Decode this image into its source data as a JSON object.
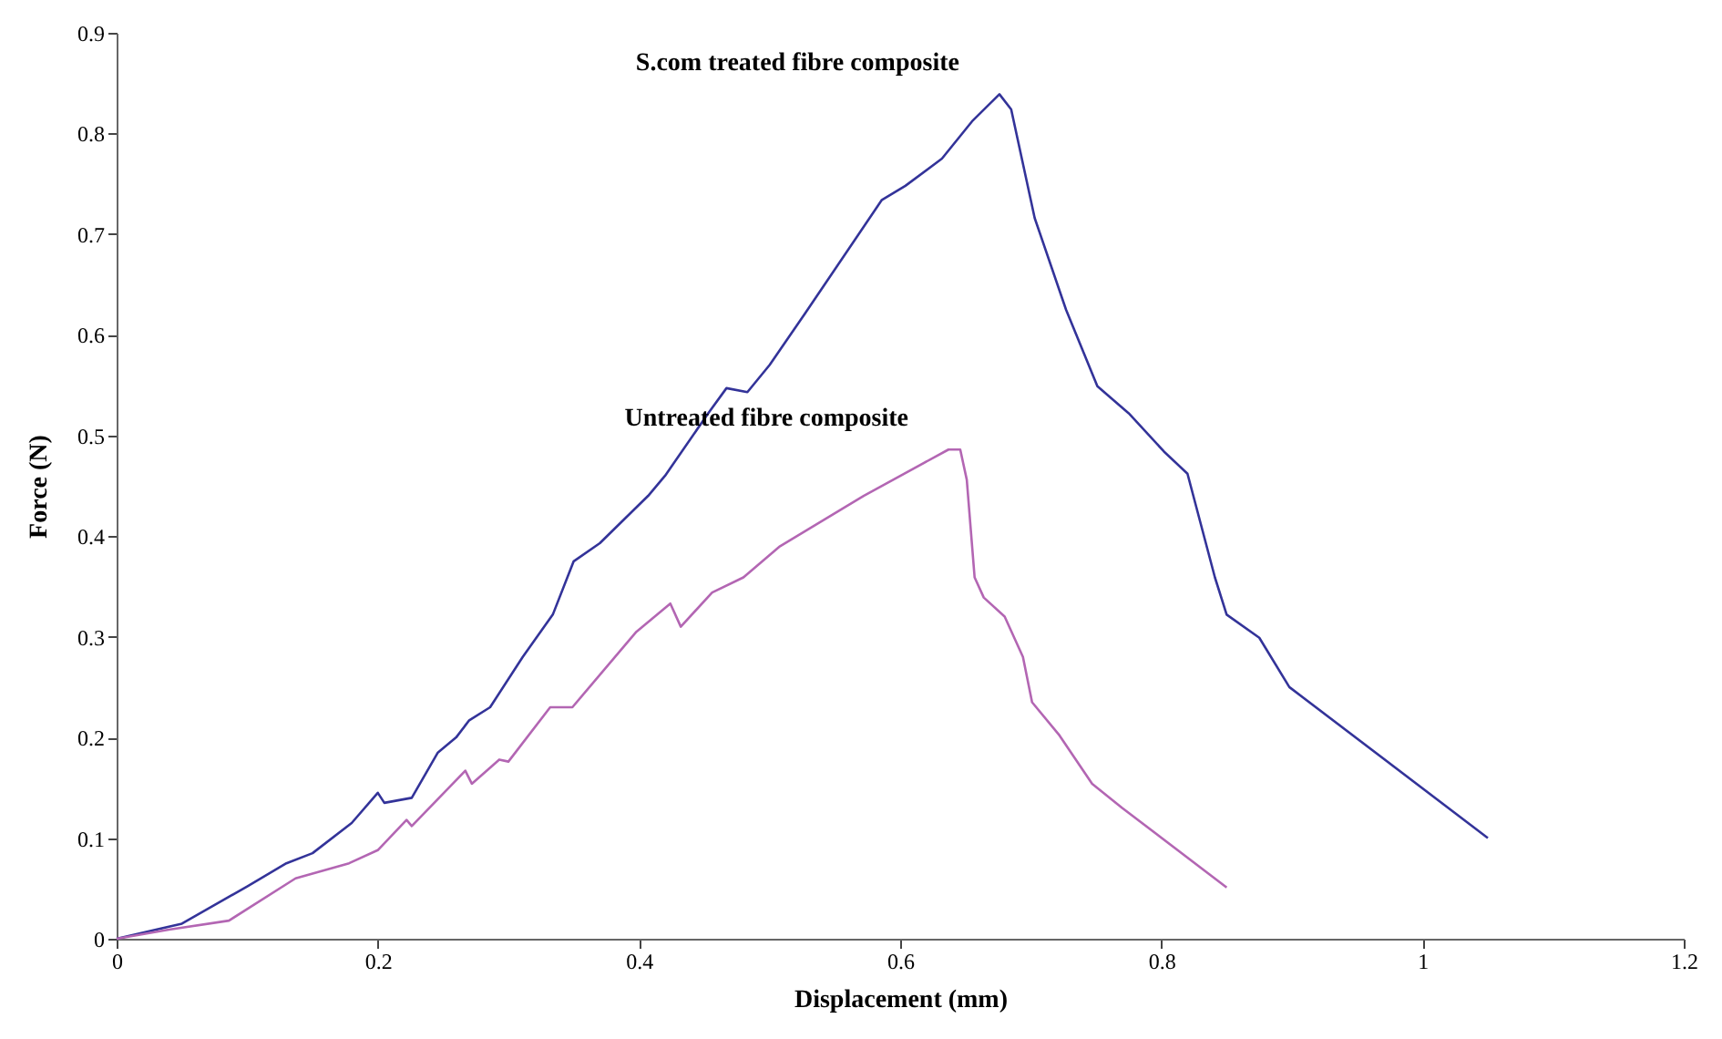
{
  "chart_data": {
    "type": "line",
    "xlabel": "Displacement (mm)",
    "ylabel": "Force (N)",
    "xlim": [
      0,
      1.2
    ],
    "xticks": [
      0,
      0.2,
      0.4,
      0.6,
      0.8,
      1,
      1.2
    ],
    "ylim": [
      0,
      0.9
    ],
    "yticks": [
      0,
      0.1,
      0.2,
      0.3,
      0.4,
      0.5,
      0.6,
      0.7,
      0.8,
      0.9
    ],
    "grid": false,
    "legend": false,
    "marker": "none",
    "line_style": "solid",
    "series": [
      {
        "name": "S.com treated fibre composite",
        "color": "#333399",
        "x": [
          0,
          0.05,
          0.1,
          0.13,
          0.15,
          0.18,
          0.2,
          0.205,
          0.226,
          0.246,
          0.26,
          0.27,
          0.286,
          0.311,
          0.334,
          0.35,
          0.37,
          0.407,
          0.42,
          0.453,
          0.467,
          0.483,
          0.5,
          0.527,
          0.586,
          0.604,
          0.632,
          0.655,
          0.676,
          0.685,
          0.703,
          0.727,
          0.751,
          0.775,
          0.802,
          0.82,
          0.841,
          0.85,
          0.875,
          0.898,
          1.05
        ],
        "values": [
          0,
          0.015,
          0.052,
          0.075,
          0.085,
          0.115,
          0.145,
          0.135,
          0.14,
          0.185,
          0.2,
          0.217,
          0.23,
          0.28,
          0.322,
          0.375,
          0.393,
          0.44,
          0.46,
          0.522,
          0.547,
          0.543,
          0.57,
          0.621,
          0.734,
          0.748,
          0.775,
          0.812,
          0.839,
          0.824,
          0.716,
          0.625,
          0.549,
          0.522,
          0.484,
          0.462,
          0.359,
          0.322,
          0.299,
          0.25,
          0.1
        ]
      },
      {
        "name": "Untreated fibre composite",
        "color": "#b366b3",
        "x": [
          0,
          0.04,
          0.086,
          0.137,
          0.178,
          0.2,
          0.222,
          0.226,
          0.267,
          0.272,
          0.293,
          0.3,
          0.332,
          0.349,
          0.398,
          0.424,
          0.432,
          0.456,
          0.48,
          0.508,
          0.572,
          0.637,
          0.646,
          0.651,
          0.657,
          0.664,
          0.68,
          0.694,
          0.701,
          0.722,
          0.747,
          0.77,
          0.85
        ],
        "values": [
          0,
          0.009,
          0.018,
          0.06,
          0.075,
          0.088,
          0.118,
          0.112,
          0.167,
          0.154,
          0.178,
          0.176,
          0.23,
          0.23,
          0.305,
          0.333,
          0.31,
          0.344,
          0.359,
          0.39,
          0.44,
          0.486,
          0.486,
          0.456,
          0.359,
          0.339,
          0.32,
          0.28,
          0.235,
          0.202,
          0.154,
          0.13,
          0.051
        ]
      }
    ]
  }
}
